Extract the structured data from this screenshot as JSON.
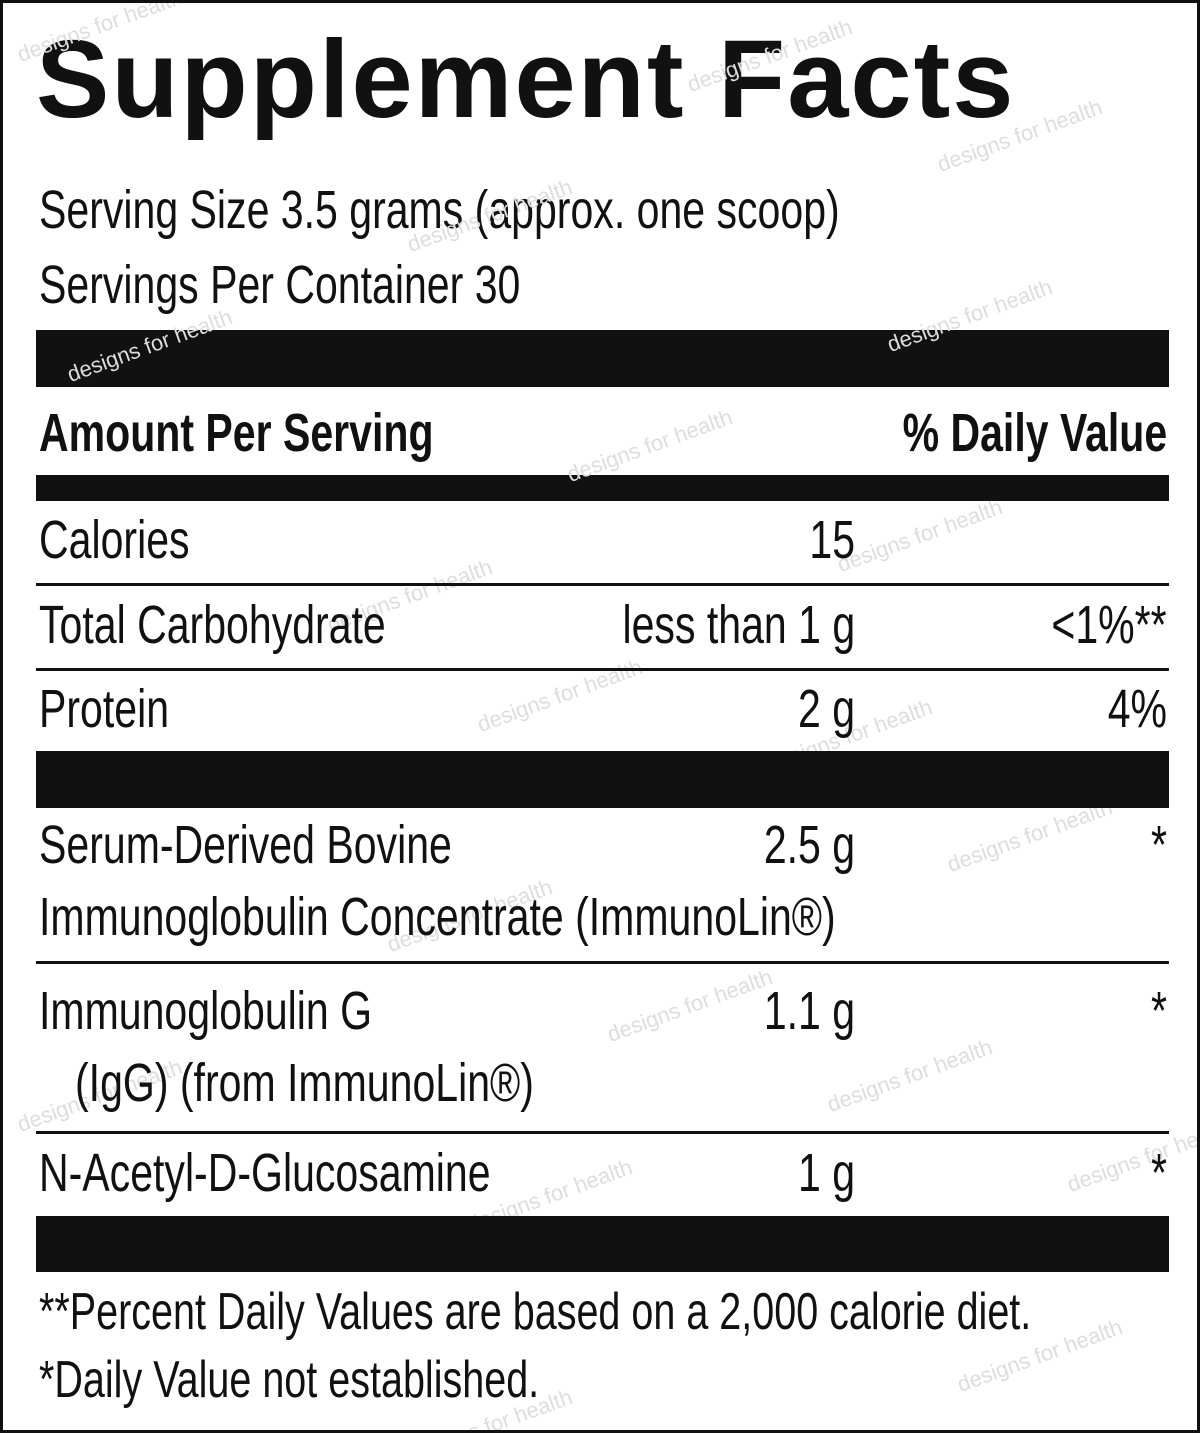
{
  "title": "Supplement Facts",
  "serving_size": "Serving Size 3.5 grams (approx. one scoop)",
  "servings_per_container": "Servings Per Container 30",
  "header": {
    "amount": "Amount Per Serving",
    "daily_value": "% Daily Value"
  },
  "rows": [
    {
      "name": [
        "Calories"
      ],
      "amount": "15"
    },
    {
      "name": [
        "Total Carbohydrate"
      ],
      "amount": "less than 1 g",
      "daily_value": "<1%**"
    },
    {
      "name": [
        "Protein"
      ],
      "amount": "2 g",
      "daily_value": "4%"
    },
    {
      "name": [
        "Serum-Derived Bovine",
        "Immunoglobulin Concentrate (ImmunoLin®)"
      ],
      "amount": "2.5 g",
      "daily_value": "*"
    },
    {
      "name": [
        "Immunoglobulin G",
        "(IgG) (from ImmunoLin®)"
      ],
      "amount": "1.1 g",
      "daily_value": "*"
    },
    {
      "name": [
        "N-Acetyl-D-Glucosamine"
      ],
      "amount": "1 g",
      "daily_value": "*"
    }
  ],
  "footnotes": [
    "**Percent Daily Values are based on a 2,000 calorie diet.",
    "*Daily Value not established."
  ],
  "watermark": "designs for health"
}
